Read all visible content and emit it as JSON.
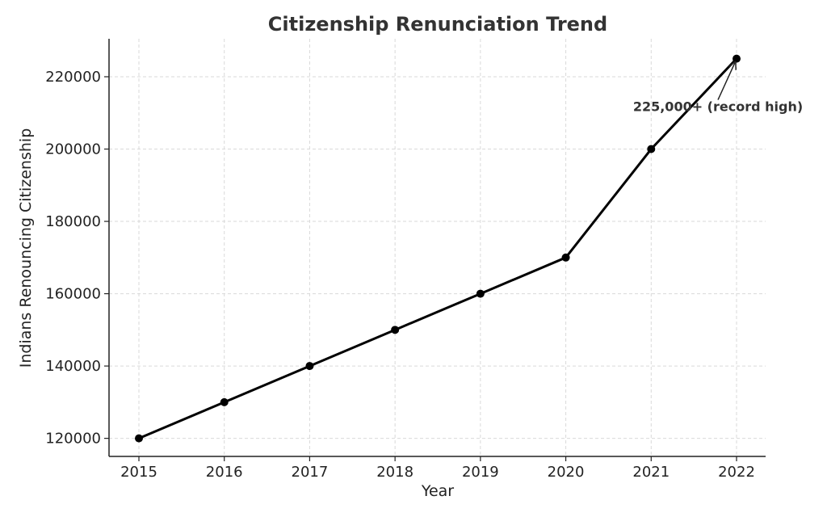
{
  "chart_data": {
    "type": "line",
    "title": "Citizenship Renunciation Trend",
    "xlabel": "Year",
    "ylabel": "Indians Renouncing Citizenship",
    "x": [
      "2015",
      "2016",
      "2017",
      "2018",
      "2019",
      "2020",
      "2021",
      "2022"
    ],
    "series": [
      {
        "values": [
          120000,
          130000,
          140000,
          150000,
          160000,
          170000,
          200000,
          225000
        ]
      }
    ],
    "ylim": [
      115000,
      230500
    ],
    "yticks": [
      120000,
      140000,
      160000,
      180000,
      200000,
      220000
    ],
    "grid": true,
    "line_color": "#000000",
    "annotations": [
      {
        "text": "225,000+ (record high)",
        "x": "2022",
        "y": 225000
      }
    ]
  }
}
